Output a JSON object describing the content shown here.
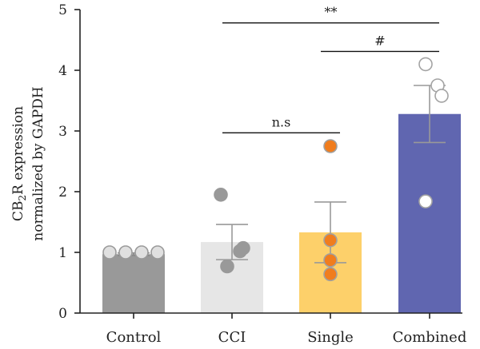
{
  "chart_data": {
    "type": "bar",
    "categories": [
      "Control",
      "CCI",
      "Single",
      "Combined"
    ],
    "values": [
      0.97,
      1.17,
      1.33,
      3.28
    ],
    "errors": [
      0.02,
      0.29,
      0.5,
      0.47
    ],
    "points": [
      [
        1.0,
        1.0,
        1.0,
        1.0
      ],
      [
        1.95,
        1.07,
        1.02,
        0.77
      ],
      [
        2.75,
        1.2,
        0.87,
        0.64
      ],
      [
        4.1,
        3.75,
        3.58,
        1.84
      ]
    ],
    "colors": {
      "bars": [
        "#999999",
        "#e6e6e6",
        "#fdd06a",
        "#6066b0"
      ],
      "points_fill": [
        "#e0e0e0",
        "#999999",
        "#f07d1e",
        "#ffffff"
      ],
      "points_stroke": [
        "#9a9a9a",
        "#999999",
        "#a0a0a0",
        "#a3a3a3"
      ],
      "error_bars": [
        "#888888",
        "#999999",
        "#999999",
        "#999999"
      ]
    },
    "ylim": [
      0,
      5
    ],
    "yticks": [
      "0",
      "1",
      "2",
      "3",
      "4",
      "5"
    ],
    "ylabel_line1": "CB2R expression",
    "ylabel_line2": "normalized by GAPDH",
    "annotations": [
      {
        "from": 1,
        "to": 2,
        "y": 2.97,
        "label": "n.s"
      },
      {
        "from": 1,
        "to": 3,
        "y": 4.78,
        "label": "**"
      },
      {
        "from": 2,
        "to": 3,
        "y": 4.31,
        "label": "#"
      }
    ]
  }
}
